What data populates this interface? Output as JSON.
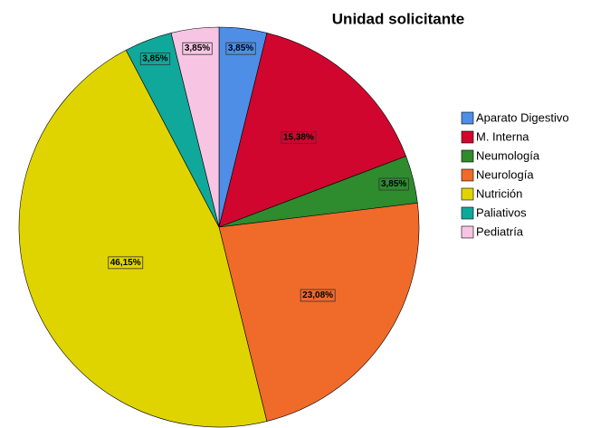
{
  "chart_data": {
    "type": "pie",
    "title": "Unidad solicitante",
    "categories": [
      "Aparato Digestivo",
      "M. Interna",
      "Neumología",
      "Neurología",
      "Nutrición",
      "Paliativos",
      "Pediatría"
    ],
    "values": [
      3.85,
      15.38,
      3.85,
      23.08,
      46.15,
      3.85,
      3.85
    ],
    "value_labels": [
      "3,85%",
      "15,38%",
      "3,85%",
      "23,08%",
      "46,15%",
      "3,85%",
      "3,85%"
    ],
    "colors": [
      "#4e8ee6",
      "#d0062f",
      "#2e8b2e",
      "#f06a2a",
      "#e0d400",
      "#10a89a",
      "#f7c5e3"
    ],
    "legend": "right"
  }
}
